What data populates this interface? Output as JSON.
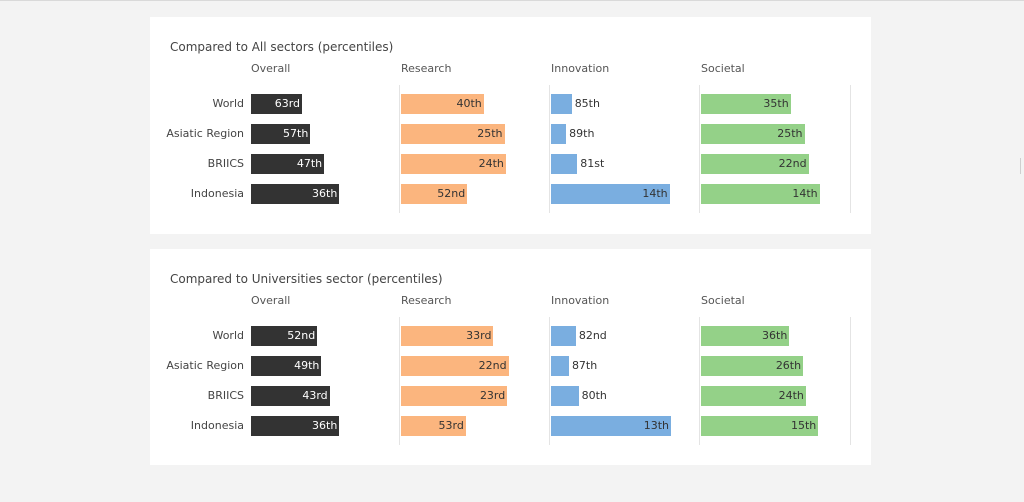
{
  "colors": {
    "Overall": "#333333",
    "Research": "#fbb57e",
    "Innovation": "#7aaee0",
    "Societal": "#94d188"
  },
  "chart_data": [
    {
      "type": "bar",
      "title": "Compared to All sectors (percentiles)",
      "categories": [
        "World",
        "Asiatic Region",
        "BRIICS",
        "Indonesia"
      ],
      "series": [
        {
          "name": "Overall",
          "values": [
            63,
            57,
            47,
            36
          ],
          "labels": [
            "63rd",
            "57th",
            "47th",
            "36th"
          ]
        },
        {
          "name": "Research",
          "values": [
            40,
            25,
            24,
            52
          ],
          "labels": [
            "40th",
            "25th",
            "24th",
            "52nd"
          ]
        },
        {
          "name": "Innovation",
          "values": [
            85,
            89,
            81,
            14
          ],
          "labels": [
            "85th",
            "89th",
            "81st",
            "14th"
          ]
        },
        {
          "name": "Societal",
          "values": [
            35,
            25,
            22,
            14
          ],
          "labels": [
            "35th",
            "25th",
            "22nd",
            "14th"
          ]
        }
      ],
      "axis_note": "lower rank value = longer bar"
    },
    {
      "type": "bar",
      "title": "Compared to Universities sector (percentiles)",
      "categories": [
        "World",
        "Asiatic Region",
        "BRIICS",
        "Indonesia"
      ],
      "series": [
        {
          "name": "Overall",
          "values": [
            52,
            49,
            43,
            36
          ],
          "labels": [
            "52nd",
            "49th",
            "43rd",
            "36th"
          ]
        },
        {
          "name": "Research",
          "values": [
            33,
            22,
            23,
            53
          ],
          "labels": [
            "33rd",
            "22nd",
            "23rd",
            "53rd"
          ]
        },
        {
          "name": "Innovation",
          "values": [
            82,
            87,
            80,
            13
          ],
          "labels": [
            "82nd",
            "87th",
            "80th",
            "13th"
          ]
        },
        {
          "name": "Societal",
          "values": [
            36,
            26,
            24,
            15
          ],
          "labels": [
            "36th",
            "26th",
            "24th",
            "15th"
          ]
        }
      ],
      "axis_note": "lower rank value = longer bar"
    }
  ]
}
